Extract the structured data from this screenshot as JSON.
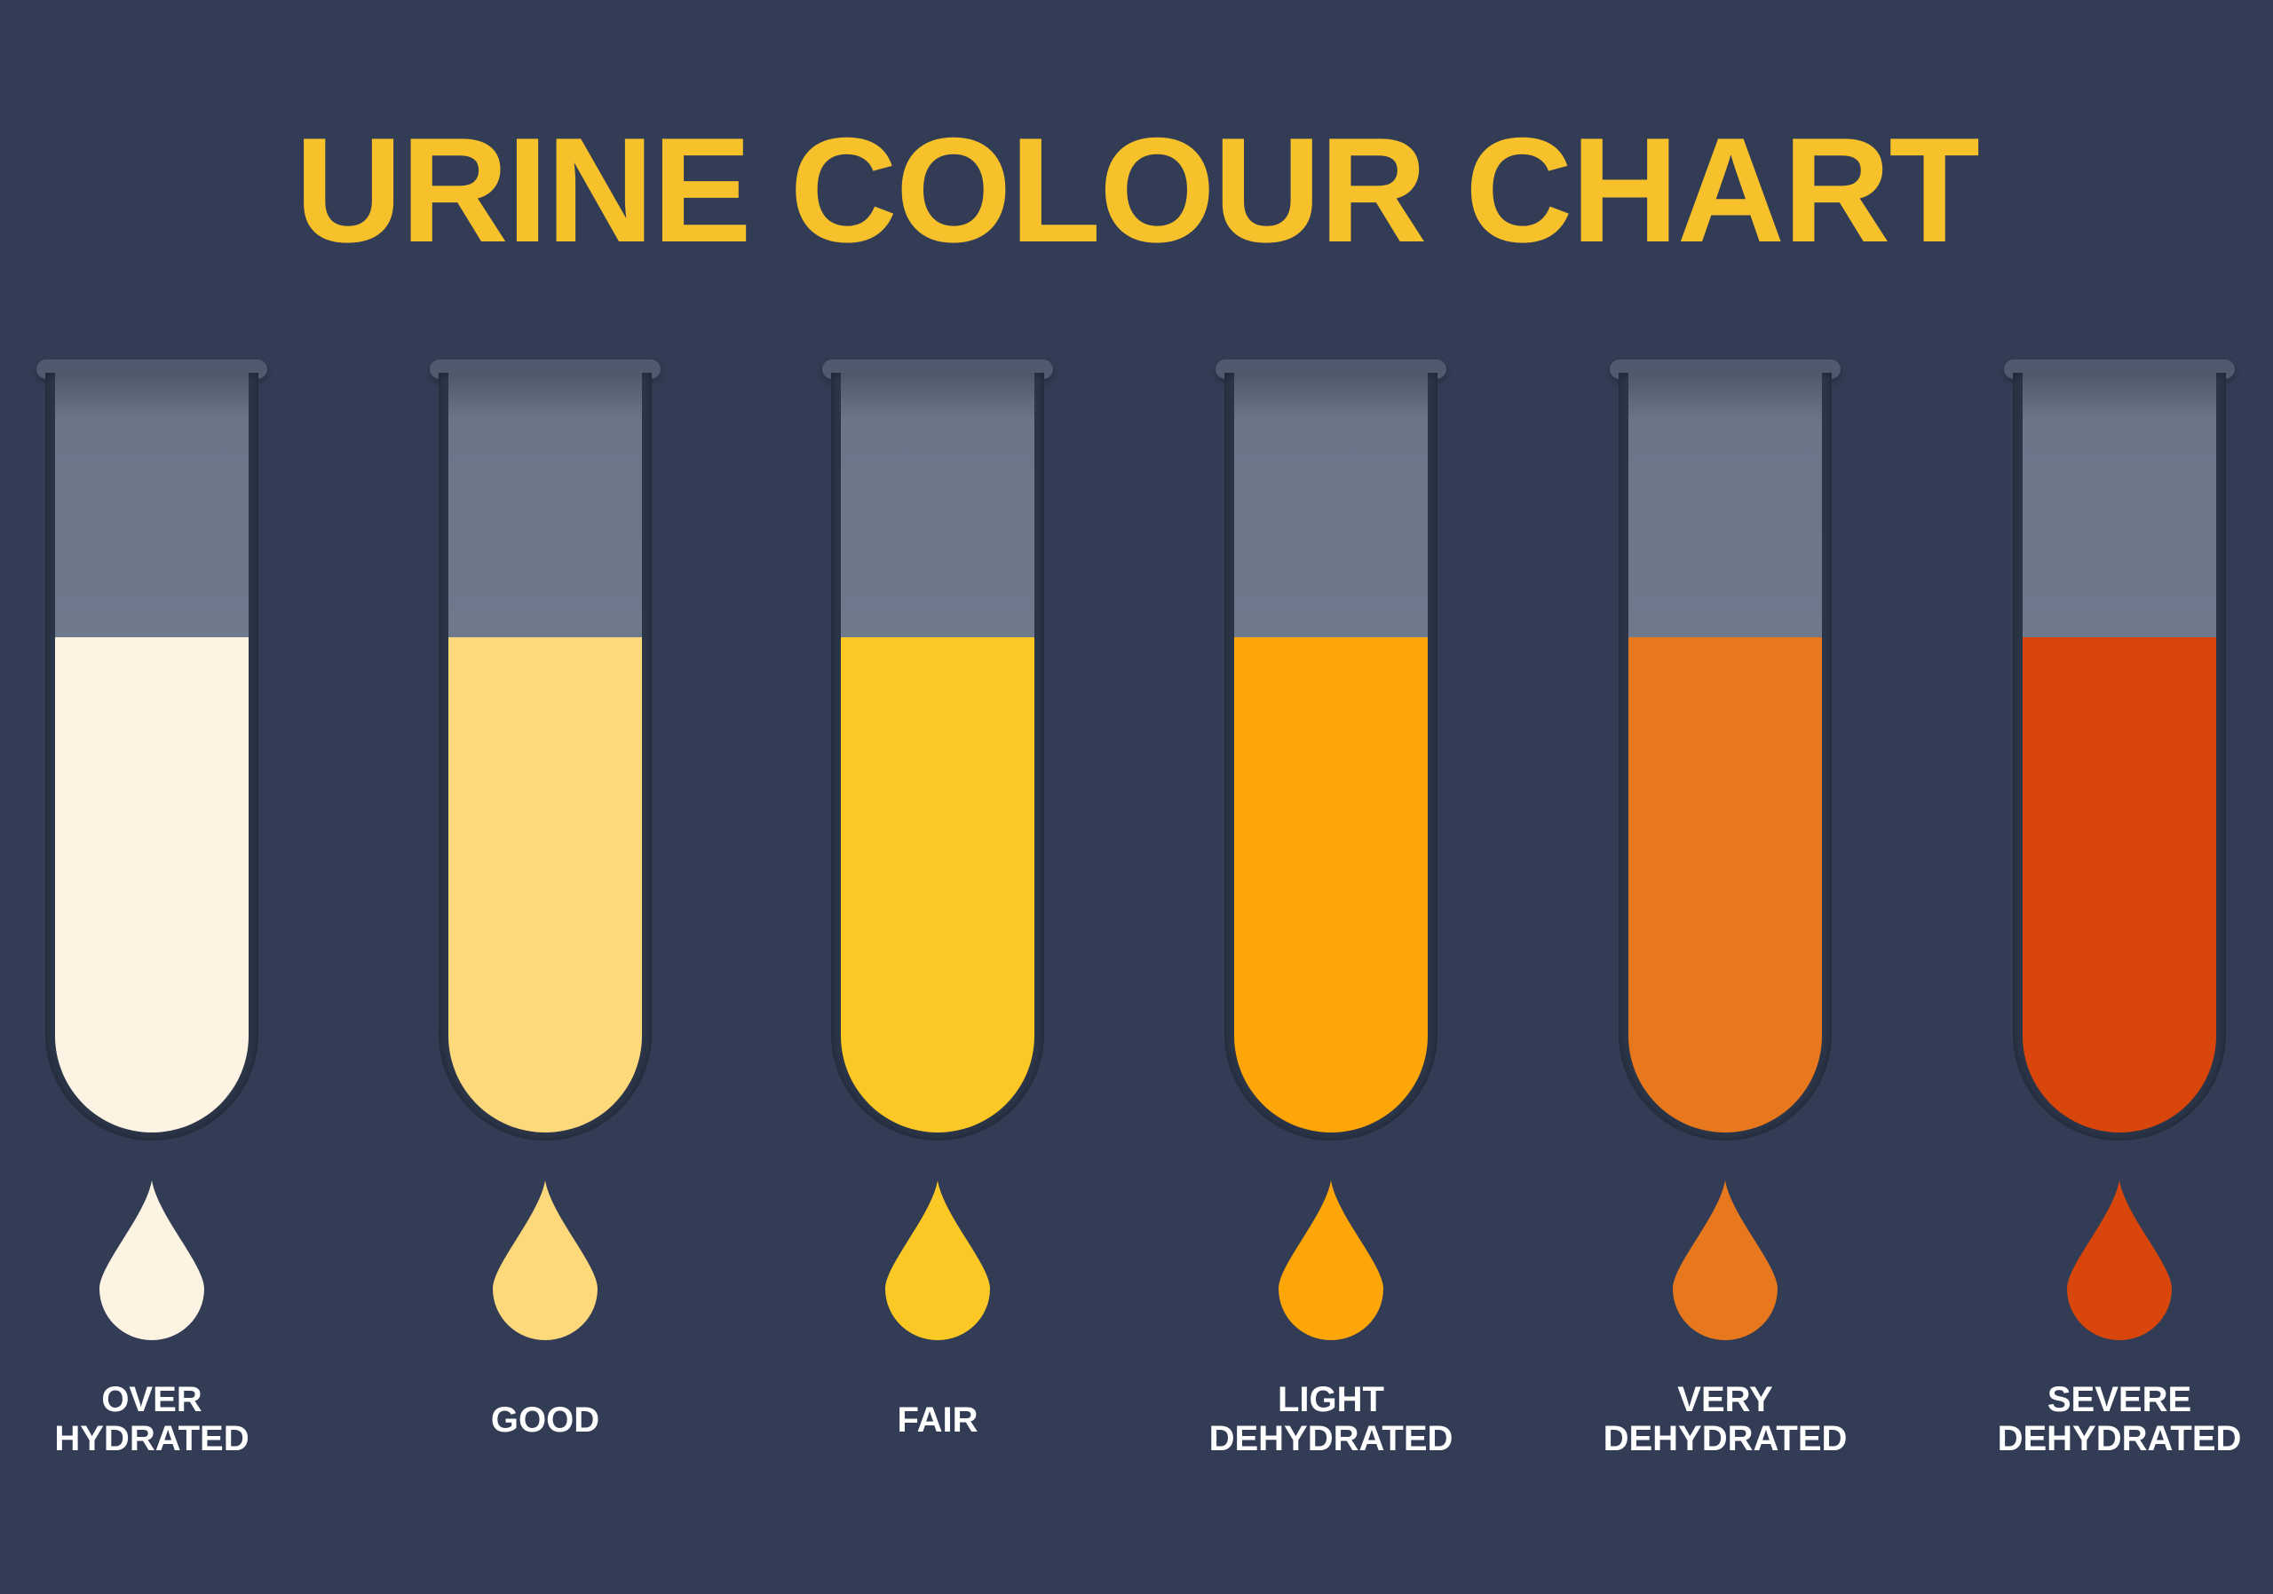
{
  "title": "URINE COLOUR CHART",
  "levels": [
    {
      "line1": "OVER",
      "line2": "HYDRATED",
      "color": "#fdf3e3"
    },
    {
      "line1": "GOOD",
      "line2": "",
      "color": "#fdd97c"
    },
    {
      "line1": "FAIR",
      "line2": "",
      "color": "#fcc825"
    },
    {
      "line1": "LIGHT",
      "line2": "DEHYDRATED",
      "color": "#fea608"
    },
    {
      "line1": "VERY",
      "line2": "DEHYDRATED",
      "color": "#e8781d"
    },
    {
      "line1": "SEVERE",
      "line2": "DEHYDRATED",
      "color": "#d9460b"
    }
  ],
  "colors": {
    "background": "#323d55",
    "title": "#f6c12a",
    "glass": "#6e798c"
  }
}
